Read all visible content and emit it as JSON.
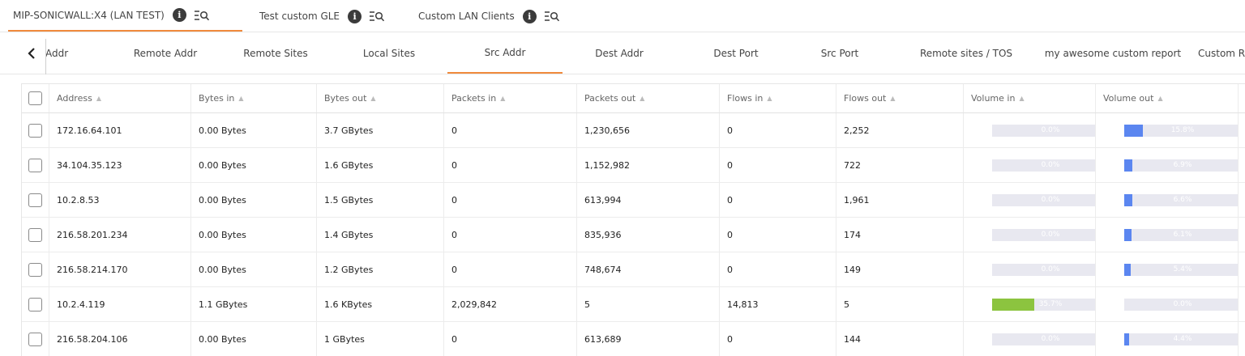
{
  "top_tabs": [
    {
      "label": "MIP-SONICWALL:X4 (LAN TEST)",
      "active": true
    },
    {
      "label": "Test custom GLE",
      "active": false
    },
    {
      "label": "Custom LAN Clients",
      "active": false
    }
  ],
  "icons": {
    "info": "info-icon",
    "filter": "filter-list-search-icon",
    "back": "chevron-left-icon"
  },
  "info_glyph": "i",
  "sub_tabs": [
    {
      "label": "Addr",
      "active": false
    },
    {
      "label": "Remote Addr",
      "active": false
    },
    {
      "label": "Remote Sites",
      "active": false
    },
    {
      "label": "Local Sites",
      "active": false
    },
    {
      "label": "Src Addr",
      "active": true
    },
    {
      "label": "Dest Addr",
      "active": false
    },
    {
      "label": "Dest Port",
      "active": false
    },
    {
      "label": "Src Port",
      "active": false
    },
    {
      "label": "Remote sites / TOS",
      "active": false
    },
    {
      "label": "my awesome custom report",
      "active": false
    },
    {
      "label": "Custom Re",
      "active": false
    }
  ],
  "colors": {
    "accent": "#f08a3c",
    "volume_in": "#8cc43f",
    "volume_out": "#5b86f0",
    "bar_track": "#e8e8f0"
  },
  "table": {
    "sort_glyph": "▲",
    "columns": [
      "Address",
      "Bytes in",
      "Bytes out",
      "Packets in",
      "Packets out",
      "Flows in",
      "Flows out",
      "Volume in",
      "Volume out"
    ],
    "rows": [
      {
        "address": "172.16.64.101",
        "bytes_in": "0.00 Bytes",
        "bytes_out": "3.7 GBytes",
        "packets_in": "0",
        "packets_out": "1,230,656",
        "flows_in": "0",
        "flows_out": "2,252",
        "volume_in": 0.0,
        "volume_in_label": "0.0%",
        "volume_out": 15.8,
        "volume_out_label": "15.8%"
      },
      {
        "address": "34.104.35.123",
        "bytes_in": "0.00 Bytes",
        "bytes_out": "1.6 GBytes",
        "packets_in": "0",
        "packets_out": "1,152,982",
        "flows_in": "0",
        "flows_out": "722",
        "volume_in": 0.0,
        "volume_in_label": "0.0%",
        "volume_out": 6.9,
        "volume_out_label": "6.9%"
      },
      {
        "address": "10.2.8.53",
        "bytes_in": "0.00 Bytes",
        "bytes_out": "1.5 GBytes",
        "packets_in": "0",
        "packets_out": "613,994",
        "flows_in": "0",
        "flows_out": "1,961",
        "volume_in": 0.0,
        "volume_in_label": "0.0%",
        "volume_out": 6.6,
        "volume_out_label": "6.6%"
      },
      {
        "address": "216.58.201.234",
        "bytes_in": "0.00 Bytes",
        "bytes_out": "1.4 GBytes",
        "packets_in": "0",
        "packets_out": "835,936",
        "flows_in": "0",
        "flows_out": "174",
        "volume_in": 0.0,
        "volume_in_label": "0.0%",
        "volume_out": 6.1,
        "volume_out_label": "6.1%"
      },
      {
        "address": "216.58.214.170",
        "bytes_in": "0.00 Bytes",
        "bytes_out": "1.2 GBytes",
        "packets_in": "0",
        "packets_out": "748,674",
        "flows_in": "0",
        "flows_out": "149",
        "volume_in": 0.0,
        "volume_in_label": "0.0%",
        "volume_out": 5.4,
        "volume_out_label": "5.4%"
      },
      {
        "address": "10.2.4.119",
        "bytes_in": "1.1 GBytes",
        "bytes_out": "1.6 KBytes",
        "packets_in": "2,029,842",
        "packets_out": "5",
        "flows_in": "14,813",
        "flows_out": "5",
        "volume_in": 35.7,
        "volume_in_label": "35.7%",
        "volume_out": 0.0,
        "volume_out_label": "0.0%"
      },
      {
        "address": "216.58.204.106",
        "bytes_in": "0.00 Bytes",
        "bytes_out": "1 GBytes",
        "packets_in": "0",
        "packets_out": "613,689",
        "flows_in": "0",
        "flows_out": "144",
        "volume_in": 0.0,
        "volume_in_label": "0.0%",
        "volume_out": 4.4,
        "volume_out_label": "4.4%"
      }
    ]
  }
}
